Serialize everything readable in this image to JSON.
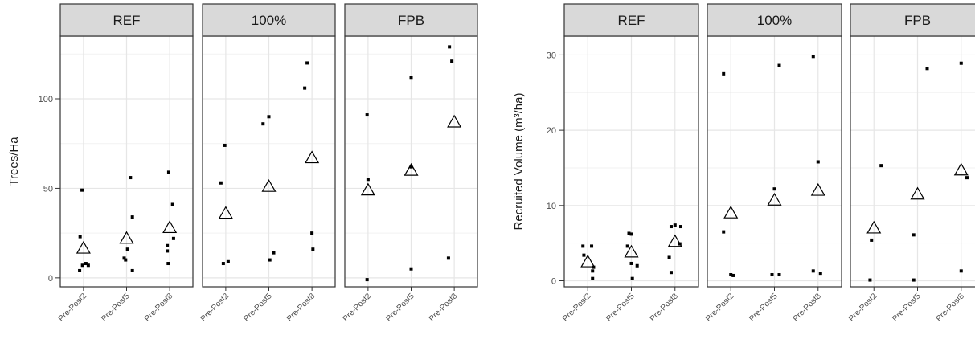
{
  "chart_data": [
    {
      "type": "scatter",
      "ylabel": "Trees/Ha",
      "ylim": [
        -5,
        135
      ],
      "yticks": [
        0,
        50,
        100
      ],
      "categories": [
        "Pre-Post2",
        "Pre-Post5",
        "Pre-Post8"
      ],
      "grid": true,
      "marker_mean": "triangle-open",
      "marker_obs": "point",
      "panels": [
        {
          "strip": "REF",
          "observations": [
            [
              [
                0.97,
                49
              ],
              [
                0.93,
                23
              ],
              [
                1.05,
                8
              ],
              [
                0.98,
                7
              ],
              [
                0.92,
                4
              ],
              [
                1.1,
                7
              ]
            ],
            [
              [
                1.08,
                56
              ],
              [
                1.12,
                34
              ],
              [
                0.95,
                11
              ],
              [
                0.98,
                10
              ],
              [
                1.02,
                16
              ],
              [
                1.12,
                4
              ]
            ],
            [
              [
                0.98,
                59
              ],
              [
                1.06,
                41
              ],
              [
                0.95,
                18
              ],
              [
                0.95,
                15
              ],
              [
                1.08,
                22
              ],
              [
                0.97,
                8
              ]
            ]
          ],
          "means": [
            16.5,
            22,
            28
          ]
        },
        {
          "strip": "100%",
          "observations": [
            [
              [
                0.98,
                74
              ],
              [
                0.9,
                53
              ],
              [
                0.95,
                8
              ],
              [
                1.05,
                9
              ]
            ],
            [
              [
                1.0,
                90
              ],
              [
                0.88,
                86
              ],
              [
                1.1,
                14
              ],
              [
                1.02,
                10
              ]
            ],
            [
              [
                0.9,
                120
              ],
              [
                0.85,
                106
              ],
              [
                1.0,
                25
              ],
              [
                1.02,
                16
              ]
            ]
          ],
          "means": [
            36,
            51,
            67
          ]
        },
        {
          "strip": "FPB",
          "observations": [
            [
              [
                0.98,
                91
              ],
              [
                1.0,
                55
              ],
              [
                0.98,
                -1
              ]
            ],
            [
              [
                1.0,
                112
              ],
              [
                1.0,
                62
              ],
              [
                1.0,
                5
              ]
            ],
            [
              [
                0.9,
                129
              ],
              [
                0.95,
                121
              ],
              [
                0.88,
                11
              ]
            ]
          ],
          "means": [
            49,
            60,
            87
          ]
        }
      ]
    },
    {
      "type": "scatter",
      "ylabel": "Recruited Volume (m³/ha)",
      "ylim": [
        -0.8,
        32.5
      ],
      "yticks": [
        0,
        10,
        20,
        30
      ],
      "categories": [
        "Pre-Post2",
        "Pre-Post5",
        "Pre-Post8"
      ],
      "grid": true,
      "marker_mean": "triangle-open",
      "marker_obs": "point",
      "panels": [
        {
          "strip": "REF",
          "observations": [
            [
              [
                0.9,
                4.6
              ],
              [
                0.92,
                3.4
              ],
              [
                1.08,
                4.6
              ],
              [
                1.1,
                1.3
              ],
              [
                1.12,
                1.8
              ],
              [
                1.1,
                0.3
              ]
            ],
            [
              [
                0.95,
                6.3
              ],
              [
                1.0,
                6.2
              ],
              [
                0.92,
                4.6
              ],
              [
                1.0,
                2.3
              ],
              [
                1.12,
                2.0
              ],
              [
                1.02,
                0.3
              ]
            ],
            [
              [
                0.92,
                7.2
              ],
              [
                1.0,
                7.4
              ],
              [
                1.12,
                7.2
              ],
              [
                0.88,
                3.1
              ],
              [
                1.1,
                4.9
              ],
              [
                0.92,
                1.1
              ]
            ]
          ],
          "means": [
            2.5,
            3.8,
            5.2
          ]
        },
        {
          "strip": "100%",
          "observations": [
            [
              [
                0.85,
                27.5
              ],
              [
                0.85,
                6.5
              ],
              [
                1.0,
                0.8
              ],
              [
                1.05,
                0.7
              ]
            ],
            [
              [
                1.1,
                28.6
              ],
              [
                1.0,
                12.2
              ],
              [
                0.95,
                0.8
              ],
              [
                1.1,
                0.8
              ]
            ],
            [
              [
                0.9,
                29.8
              ],
              [
                1.0,
                15.8
              ],
              [
                0.9,
                1.3
              ],
              [
                1.05,
                1.0
              ]
            ]
          ],
          "means": [
            9,
            10.7,
            12
          ]
        },
        {
          "strip": "FPB",
          "observations": [
            [
              [
                1.15,
                15.3
              ],
              [
                0.95,
                5.4
              ],
              [
                0.92,
                0.1
              ]
            ],
            [
              [
                1.2,
                28.2
              ],
              [
                0.92,
                6.1
              ],
              [
                0.92,
                0.1
              ]
            ],
            [
              [
                1.0,
                28.9
              ],
              [
                1.12,
                13.7
              ],
              [
                1.0,
                1.3
              ]
            ]
          ],
          "means": [
            7,
            11.5,
            14.7
          ]
        }
      ]
    }
  ]
}
